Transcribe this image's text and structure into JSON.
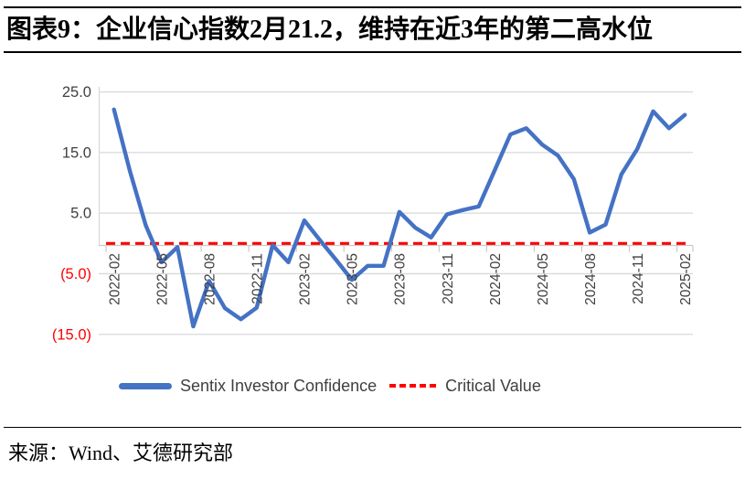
{
  "title": "图表9：企业信心指数2月21.2，维持在近3年的第二高水位",
  "source": "来源：Wind、艾德研究部",
  "legend": [
    {
      "label": "Sentix Investor Confidence",
      "swatch": "solid-line",
      "color": "#4472C4"
    },
    {
      "label": "Critical Value",
      "swatch": "dashed-line",
      "color": "#FF0000"
    }
  ],
  "colors": {
    "series_line": "#4472C4",
    "critical_line": "#FF0000",
    "gridline": "#D9D9D9",
    "axis": "#C9C9C9",
    "tick_label": "#404040",
    "negative_tick_label": "#FF0000",
    "legend_text": "#404040"
  },
  "chart_data": {
    "type": "line",
    "title": "图表9：企业信心指数2月21.2，维持在近3年的第二高水位",
    "x": [
      "2022-02",
      "2022-03",
      "2022-04",
      "2022-05",
      "2022-06",
      "2022-07",
      "2022-08",
      "2022-09",
      "2022-10",
      "2022-11",
      "2022-12",
      "2023-01",
      "2023-02",
      "2023-03",
      "2023-04",
      "2023-05",
      "2023-06",
      "2023-07",
      "2023-08",
      "2023-09",
      "2023-10",
      "2023-11",
      "2023-12",
      "2024-01",
      "2024-02",
      "2024-03",
      "2024-04",
      "2024-05",
      "2024-06",
      "2024-07",
      "2024-08",
      "2024-09",
      "2024-10",
      "2024-11",
      "2024-12",
      "2025-01",
      "2025-02"
    ],
    "series": [
      {
        "name": "Sentix Investor Confidence",
        "color": "#4472C4",
        "style": "solid",
        "values": [
          22.1,
          12.0,
          3.0,
          -3.1,
          -0.6,
          -13.7,
          -6.2,
          -10.7,
          -12.5,
          -10.6,
          -0.3,
          -3.1,
          3.8,
          0.5,
          -2.7,
          -6.0,
          -3.7,
          -3.7,
          5.2,
          2.6,
          1.0,
          4.8,
          5.5,
          6.1,
          12.0,
          18.0,
          19.0,
          16.3,
          14.5,
          10.6,
          1.8,
          3.1,
          11.4,
          15.6,
          21.8,
          19.0,
          21.2
        ]
      },
      {
        "name": "Critical Value",
        "color": "#FF0000",
        "style": "dashed",
        "constant_value": 0
      }
    ],
    "x_tick_labels": [
      "2022-02",
      "2022-05",
      "2022-08",
      "2022-11",
      "2023-02",
      "2023-05",
      "2023-08",
      "2023-11",
      "2024-02",
      "2024-05",
      "2024-08",
      "2024-11",
      "2025-02"
    ],
    "x_tick_label_every": 3,
    "y_ticks": [
      25,
      15,
      5,
      -5,
      -15
    ],
    "y_tick_labels": [
      "25.0",
      "15.0",
      "5.0",
      "(5.0)",
      "(15.0)"
    ],
    "ylim": [
      -17,
      27
    ],
    "grid": true,
    "legend_position": "bottom"
  }
}
